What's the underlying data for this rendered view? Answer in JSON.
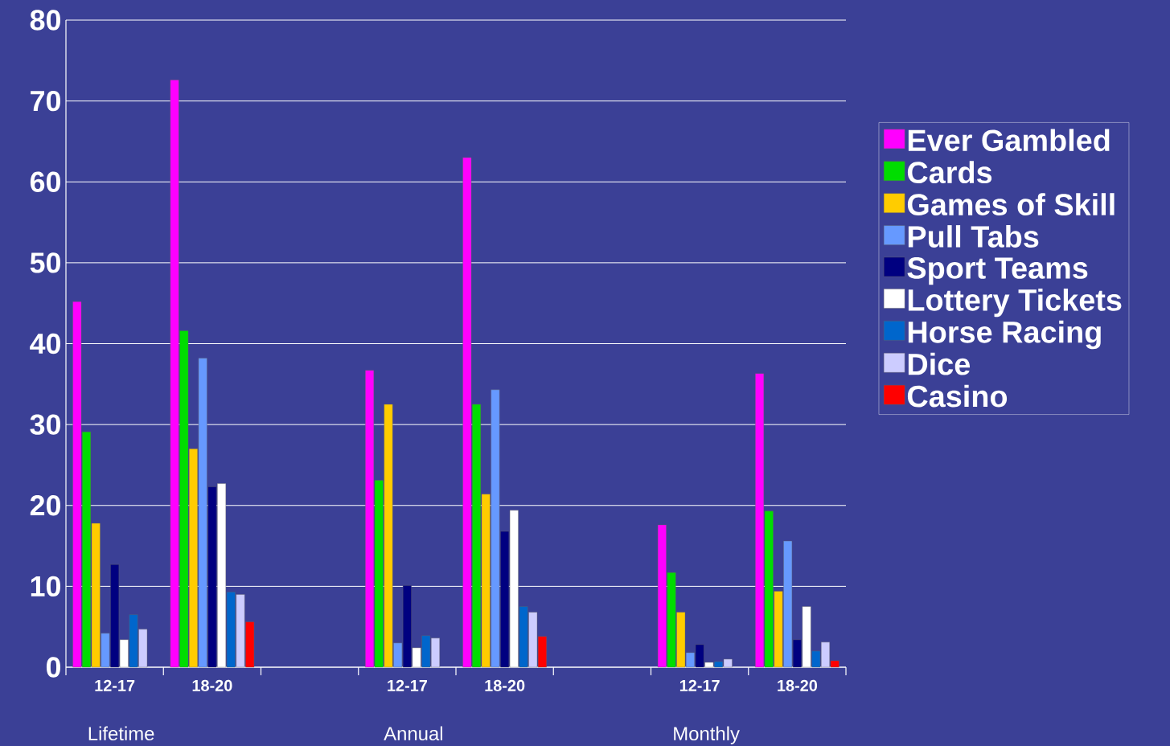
{
  "chart_data": {
    "type": "bar",
    "categories": [
      "12-17",
      "18-20",
      null,
      "12-17",
      "18-20",
      null,
      "12-17",
      "18-20"
    ],
    "series": [
      {
        "name": "Ever Gambled",
        "color": "#ff00ff",
        "values": [
          45.2,
          72.6,
          null,
          36.7,
          63,
          null,
          17.6,
          36.3
        ]
      },
      {
        "name": "Cards",
        "color": "#00dd00",
        "values": [
          29.1,
          41.6,
          null,
          23.1,
          32.5,
          null,
          11.7,
          19.3
        ]
      },
      {
        "name": "Games of Skill",
        "color": "#ffcc00",
        "values": [
          17.8,
          27,
          null,
          32.5,
          21.4,
          null,
          6.8,
          9.4
        ]
      },
      {
        "name": "Pull Tabs",
        "color": "#6699ff",
        "values": [
          4.2,
          38.2,
          null,
          3,
          34.3,
          null,
          1.8,
          15.6
        ]
      },
      {
        "name": "Sport Teams",
        "color": "#000080",
        "values": [
          12.7,
          22.3,
          null,
          10.1,
          16.8,
          null,
          2.8,
          3.4
        ]
      },
      {
        "name": "Lottery Tickets",
        "color": "#ffffff",
        "values": [
          3.4,
          22.7,
          null,
          2.4,
          19.4,
          null,
          0.6,
          7.5
        ]
      },
      {
        "name": "Horse Racing",
        "color": "#0066cc",
        "values": [
          6.5,
          9.3,
          null,
          3.9,
          7.5,
          null,
          0.7,
          2
        ]
      },
      {
        "name": "Dice",
        "color": "#ccccff",
        "values": [
          4.7,
          9,
          null,
          3.6,
          6.8,
          null,
          1,
          3.1
        ]
      },
      {
        "name": "Casino",
        "color": "#ff0000",
        "values": [
          null,
          5.6,
          null,
          null,
          3.8,
          null,
          null,
          0.8
        ]
      }
    ],
    "ylim": [
      0,
      80
    ],
    "yticks": [
      0,
      10,
      20,
      30,
      40,
      50,
      60,
      70,
      80
    ],
    "grid": "y",
    "legend": "right",
    "annotations": [
      "Lifetime",
      "Annual",
      "Monthly"
    ]
  }
}
